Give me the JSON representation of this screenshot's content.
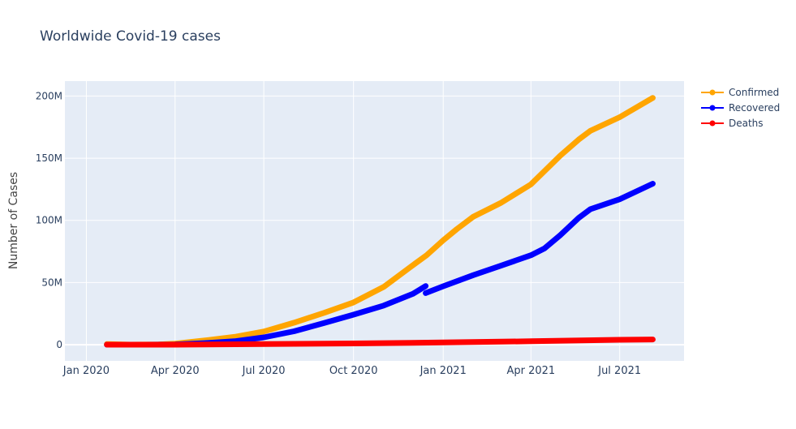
{
  "chart_data": {
    "type": "line",
    "title": "Worldwide Covid-19 cases",
    "xlabel": "",
    "ylabel": "Number of Cases",
    "x_axis": {
      "type": "date",
      "range": [
        "2019-12-10",
        "2021-09-05"
      ],
      "ticks": [
        {
          "date": "2020-01-01",
          "label": "Jan 2020"
        },
        {
          "date": "2020-04-01",
          "label": "Apr 2020"
        },
        {
          "date": "2020-07-01",
          "label": "Jul 2020"
        },
        {
          "date": "2020-10-01",
          "label": "Oct 2020"
        },
        {
          "date": "2021-01-01",
          "label": "Jan 2021"
        },
        {
          "date": "2021-04-01",
          "label": "Apr 2021"
        },
        {
          "date": "2021-07-01",
          "label": "Jul 2021"
        }
      ]
    },
    "y_axis": {
      "range": [
        -13000000,
        212000000
      ],
      "ticks": [
        {
          "value": 0,
          "label": "0"
        },
        {
          "value": 50000000,
          "label": "50M"
        },
        {
          "value": 100000000,
          "label": "100M"
        },
        {
          "value": 150000000,
          "label": "150M"
        },
        {
          "value": 200000000,
          "label": "200M"
        }
      ]
    },
    "grid": true,
    "legend_position": "top-right",
    "series": [
      {
        "name": "Confirmed",
        "color": "#FFA500",
        "points": [
          [
            "2020-01-22",
            0.5
          ],
          [
            "2020-02-15",
            0.07
          ],
          [
            "2020-03-15",
            0.17
          ],
          [
            "2020-04-01",
            0.9
          ],
          [
            "2020-05-01",
            3.4
          ],
          [
            "2020-06-01",
            6.3
          ],
          [
            "2020-07-01",
            10.6
          ],
          [
            "2020-08-01",
            17.7
          ],
          [
            "2020-09-01",
            25.7
          ],
          [
            "2020-10-01",
            34.0
          ],
          [
            "2020-11-01",
            46.5
          ],
          [
            "2020-12-01",
            64.0
          ],
          [
            "2020-12-15",
            72.0
          ],
          [
            "2021-01-01",
            84.0
          ],
          [
            "2021-01-15",
            93.0
          ],
          [
            "2021-02-01",
            103.0
          ],
          [
            "2021-03-01",
            114.0
          ],
          [
            "2021-04-01",
            129.0
          ],
          [
            "2021-05-01",
            152.0
          ],
          [
            "2021-05-20",
            165.0
          ],
          [
            "2021-06-01",
            172.0
          ],
          [
            "2021-07-01",
            183.0
          ],
          [
            "2021-08-04",
            198.5
          ]
        ]
      },
      {
        "name": "Recovered",
        "color": "#0000FF",
        "segments": [
          [
            [
              "2020-01-22",
              0.03
            ],
            [
              "2020-03-01",
              0.04
            ],
            [
              "2020-04-01",
              0.2
            ],
            [
              "2020-05-01",
              1.3
            ],
            [
              "2020-06-01",
              2.8
            ],
            [
              "2020-07-01",
              5.9
            ],
            [
              "2020-08-01",
              10.8
            ],
            [
              "2020-09-01",
              17.5
            ],
            [
              "2020-10-01",
              24.2
            ],
            [
              "2020-11-01",
              31.5
            ],
            [
              "2020-12-01",
              41.0
            ],
            [
              "2020-12-14",
              47.2
            ]
          ],
          [
            [
              "2020-12-14",
              41.5
            ],
            [
              "2021-01-01",
              47.0
            ],
            [
              "2021-02-01",
              56.0
            ],
            [
              "2021-03-01",
              63.5
            ],
            [
              "2021-04-01",
              72.0
            ],
            [
              "2021-04-15",
              77.5
            ],
            [
              "2021-05-01",
              88.0
            ],
            [
              "2021-05-20",
              102.0
            ],
            [
              "2021-06-01",
              109.0
            ],
            [
              "2021-07-01",
              117.0
            ],
            [
              "2021-08-04",
              129.5
            ]
          ]
        ]
      },
      {
        "name": "Deaths",
        "color": "#FF0000",
        "points": [
          [
            "2020-01-22",
            0.02
          ],
          [
            "2020-04-01",
            0.05
          ],
          [
            "2020-07-01",
            0.52
          ],
          [
            "2020-10-01",
            1.0
          ],
          [
            "2021-01-01",
            1.8
          ],
          [
            "2021-04-01",
            2.8
          ],
          [
            "2021-07-01",
            3.95
          ],
          [
            "2021-08-04",
            4.2
          ]
        ]
      }
    ]
  }
}
